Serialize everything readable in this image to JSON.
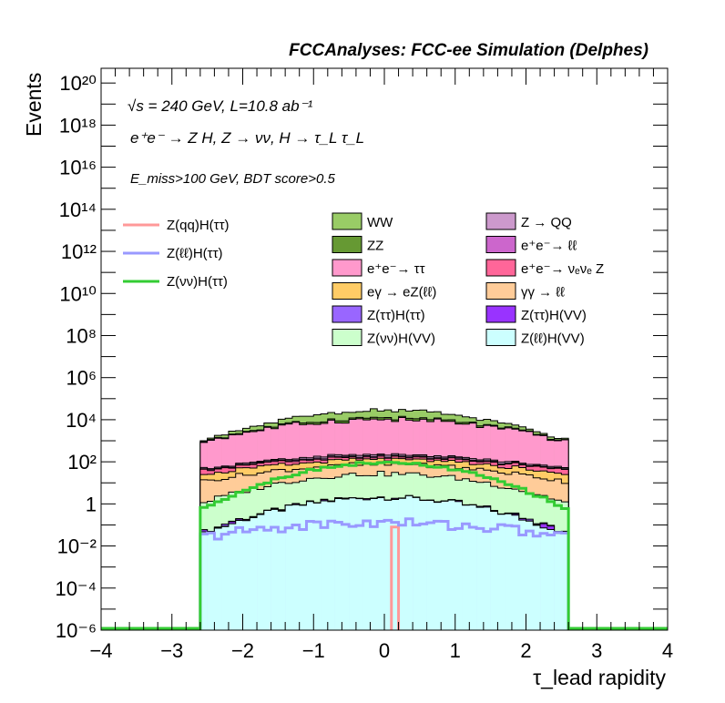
{
  "chart_data": {
    "type": "histogram",
    "title": "FCCAnalyses: FCC-ee Simulation (Delphes)",
    "xlabel": "τ_lead rapidity",
    "ylabel": "Events",
    "xlim": [
      -4,
      4
    ],
    "ylim_log10": [
      -6,
      20.7
    ],
    "y_scale": "log",
    "annotations": [
      "√s = 240 GeV, L=10.8 ab⁻¹",
      "e⁺e⁻ → Z H, Z → νν, H → τ_L τ_L",
      "E_miss>100 GeV, BDT score>0.5"
    ],
    "x_ticks": [
      "−4",
      "−3",
      "−2",
      "−1",
      "0",
      "1",
      "2",
      "3",
      "4"
    ],
    "y_ticks": [
      "10⁻⁶",
      "10⁻⁴",
      "10⁻²",
      "1",
      "10²",
      "10⁴",
      "10⁶",
      "10⁸",
      "10¹⁰",
      "10¹²",
      "10¹⁴",
      "10¹⁶",
      "10¹⁸",
      "10²⁰"
    ],
    "bins": {
      "xmin": -2.6,
      "xmax": 2.6,
      "n": 52
    },
    "stacked_backgrounds": [
      {
        "name": "Z(ℓℓ)H(VV)",
        "color": "#ccffff",
        "logy_center": 0.3,
        "logy_edge": -1.5
      },
      {
        "name": "Z(ττ)H(VV)",
        "color": "#9933ff",
        "logy_center": -1.3,
        "logy_edge": -2.3
      },
      {
        "name": "Z(ττ)H(ττ)",
        "color": "#9966ff",
        "logy_center": -1.6,
        "logy_edge": -2.5
      },
      {
        "name": "Z(νν)H(VV)",
        "color": "#ccffcc",
        "logy_center": 1.4,
        "logy_edge": 0.0
      },
      {
        "name": "γγ → ℓℓ",
        "color": "#ffcc99",
        "logy_center": 1.7,
        "logy_edge": 1.0
      },
      {
        "name": "eγ → eZ(ℓℓ)",
        "color": "#ffcc66",
        "logy_center": 1.7,
        "logy_edge": 1.1
      },
      {
        "name": "e⁺e⁻→ νₑνₑ Z",
        "color": "#ff6699",
        "logy_center": 1.5,
        "logy_edge": 1.2
      },
      {
        "name": "e⁺e⁻→ ℓℓ",
        "color": "#cc66cc",
        "logy_center": 1.3,
        "logy_edge": 0.4
      },
      {
        "name": "Z → QQ",
        "color": "#cc99cc",
        "logy_center": 1.5,
        "logy_edge": 0.7
      },
      {
        "name": "e⁺e⁻→ ττ",
        "color": "#ff99cc",
        "logy_center": 4.0,
        "logy_edge": 2.9
      },
      {
        "name": "ZZ",
        "color": "#669933",
        "logy_center": 3.3,
        "logy_edge": 1.7
      },
      {
        "name": "WW",
        "color": "#99cc66",
        "logy_center": 4.2,
        "logy_edge": 2.1
      }
    ],
    "signal_lines": [
      {
        "name": "Z(qq)H(ττ)",
        "color": "#ff9999",
        "note": "single bin near x≈0.15 at ~10⁻¹"
      },
      {
        "name": "Z(ℓℓ)H(ττ)",
        "color": "#9999ff",
        "logy_center": -0.9,
        "logy_edge": -1.6
      },
      {
        "name": "Z(νν)H(ττ)",
        "color": "#33cc33",
        "logy_center": 1.95,
        "logy_edge": -0.3
      }
    ],
    "legend_left": [
      "Z(qq)H(ττ)",
      "Z(ℓℓ)H(ττ)",
      "Z(νν)H(ττ)"
    ],
    "legend_mid": [
      "WW",
      "ZZ",
      "e⁺e⁻→ ττ",
      "eγ → eZ(ℓℓ)",
      "Z(ττ)H(ττ)",
      "Z(νν)H(VV)"
    ],
    "legend_right": [
      "Z → QQ",
      "e⁺e⁻→ ℓℓ",
      "e⁺e⁻→ νₑνₑ Z",
      "γγ → ℓℓ",
      "Z(ττ)H(VV)",
      "Z(ℓℓ)H(VV)"
    ],
    "legend_placement": "inside-top"
  }
}
